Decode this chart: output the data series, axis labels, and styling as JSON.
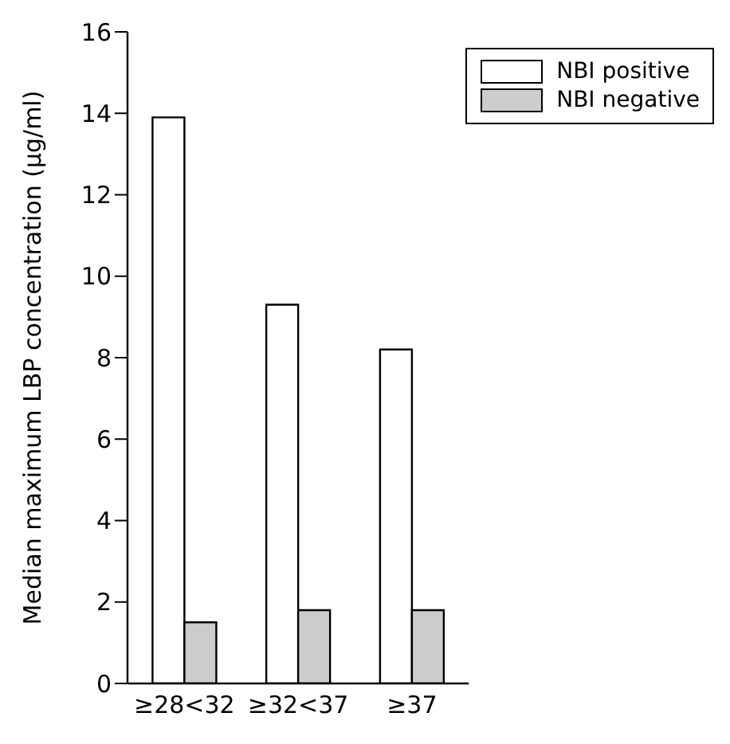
{
  "chart_data": {
    "type": "bar",
    "ylabel": "Median maximum LBP concentration (µg/ml)",
    "categories": [
      "≥28<32",
      "≥32<37",
      "≥37"
    ],
    "series": [
      {
        "name": "NBI positive",
        "color": "#ffffff",
        "values": [
          13.9,
          9.3,
          8.2
        ]
      },
      {
        "name": "NBI negative",
        "color": "#cccccc",
        "values": [
          1.5,
          1.8,
          1.8
        ]
      }
    ],
    "ylim": [
      0,
      16
    ],
    "yticks": [
      0,
      2,
      4,
      6,
      8,
      10,
      12,
      14,
      16
    ],
    "grid": false,
    "legend": "top right"
  }
}
